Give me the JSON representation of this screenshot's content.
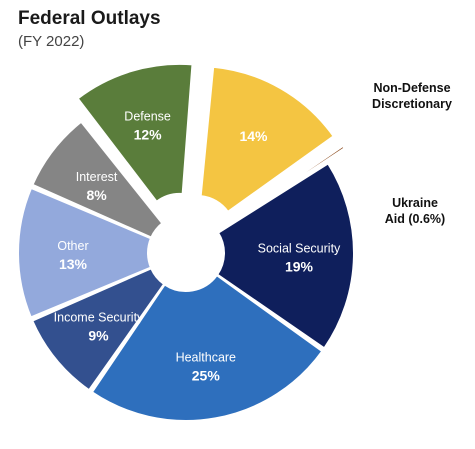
{
  "chart_data": {
    "type": "pie",
    "title": "Federal Outlays",
    "subtitle": "(FY 2022)",
    "slices": [
      {
        "label": "Defense",
        "percent_label": "12%",
        "value": 12,
        "color": "#5a7d3b",
        "exploded": true,
        "label_inside": true,
        "text_color": "#ffffff"
      },
      {
        "label": "Non-Defense Discretionary",
        "percent_label": "14%",
        "value": 14,
        "color": "#f4c542",
        "exploded": true,
        "label_inside": false,
        "text_color": "#ffffff"
      },
      {
        "label": "Ukraine Aid (0.6%)",
        "percent_label": "",
        "value": 0.6,
        "color": "#8b4a1c",
        "exploded": true,
        "label_inside": false,
        "text_color": "#111111"
      },
      {
        "label": "Social Security",
        "percent_label": "19%",
        "value": 19,
        "color": "#0f1f5c",
        "exploded": false,
        "label_inside": true,
        "text_color": "#ffffff"
      },
      {
        "label": "Healthcare",
        "percent_label": "25%",
        "value": 25,
        "color": "#2e6fbd",
        "exploded": false,
        "label_inside": true,
        "text_color": "#ffffff"
      },
      {
        "label": "Income Security",
        "percent_label": "9%",
        "value": 9,
        "color": "#33508f",
        "exploded": false,
        "label_inside": true,
        "text_color": "#ffffff"
      },
      {
        "label": "Other",
        "percent_label": "13%",
        "value": 13,
        "color": "#93a9dc",
        "exploded": false,
        "label_inside": true,
        "text_color": "#ffffff"
      },
      {
        "label": "Interest",
        "percent_label": "8%",
        "value": 8,
        "color": "#858585",
        "exploded": false,
        "label_inside": true,
        "text_color": "#ffffff"
      }
    ],
    "callouts": {
      "non_defense": [
        "Non-Defense",
        "Discretionary"
      ],
      "ukraine": [
        "Ukraine",
        "Aid (0.6%)"
      ]
    }
  }
}
